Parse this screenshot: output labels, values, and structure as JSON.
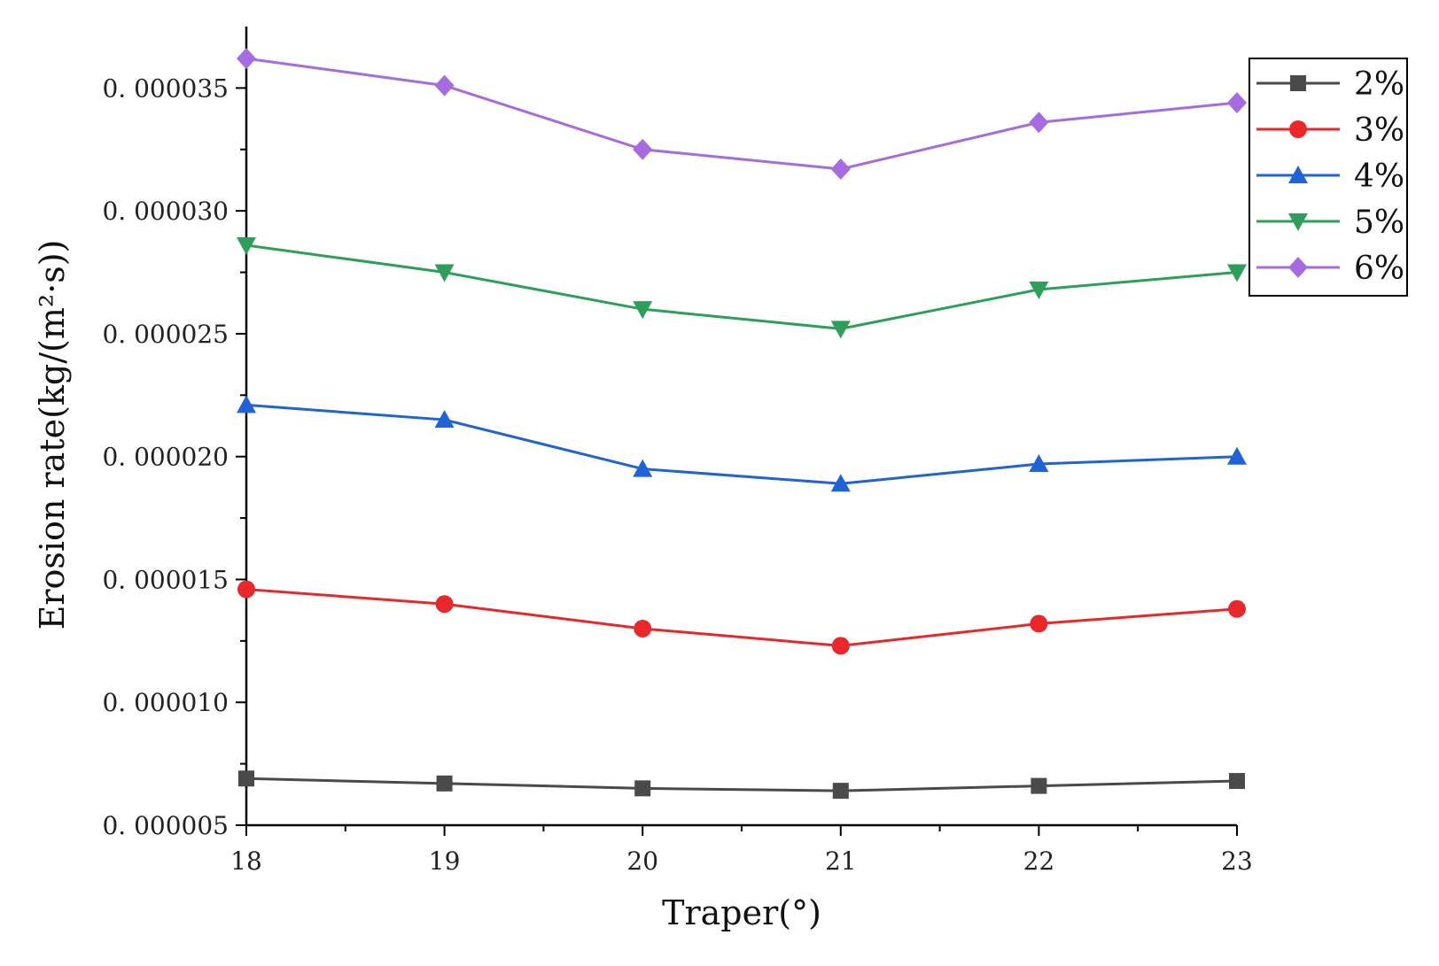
{
  "chart_data": {
    "type": "line",
    "title": "",
    "xlabel": "Traper(°)",
    "ylabel": "Erosion rate(kg/(m²·s))",
    "x": [
      18,
      19,
      20,
      21,
      22,
      23
    ],
    "xlim": [
      18,
      23
    ],
    "ylim": [
      5e-06,
      3.75e-05
    ],
    "yticks": [
      5e-06,
      1e-05,
      1.5e-05,
      2e-05,
      2.5e-05,
      3e-05,
      3.5e-05
    ],
    "ytick_labels": [
      "0. 000005",
      "0. 000010",
      "0. 000015",
      "0. 000020",
      "0. 000025",
      "0. 000030",
      "0. 000035"
    ],
    "xtick_labels": [
      "18",
      "19",
      "20",
      "21",
      "22",
      "23"
    ],
    "legend_position": "top-right",
    "grid": false,
    "series": [
      {
        "name": "2%",
        "color": "#4a4a4a",
        "marker": "square",
        "values": [
          6.9e-06,
          6.7e-06,
          6.5e-06,
          6.4e-06,
          6.6e-06,
          6.8e-06
        ]
      },
      {
        "name": "3%",
        "color": "#e8282b",
        "marker": "circle",
        "values": [
          1.46e-05,
          1.4e-05,
          1.3e-05,
          1.23e-05,
          1.32e-05,
          1.38e-05
        ]
      },
      {
        "name": "4%",
        "color": "#1f63d6",
        "marker": "triangle-up",
        "values": [
          2.21e-05,
          2.15e-05,
          1.95e-05,
          1.89e-05,
          1.97e-05,
          2e-05
        ]
      },
      {
        "name": "5%",
        "color": "#2e9e5b",
        "marker": "triangle-down",
        "values": [
          2.86e-05,
          2.75e-05,
          2.6e-05,
          2.52e-05,
          2.68e-05,
          2.75e-05
        ]
      },
      {
        "name": "6%",
        "color": "#a66be0",
        "marker": "diamond",
        "values": [
          3.62e-05,
          3.51e-05,
          3.25e-05,
          3.17e-05,
          3.36e-05,
          3.44e-05
        ]
      }
    ]
  }
}
